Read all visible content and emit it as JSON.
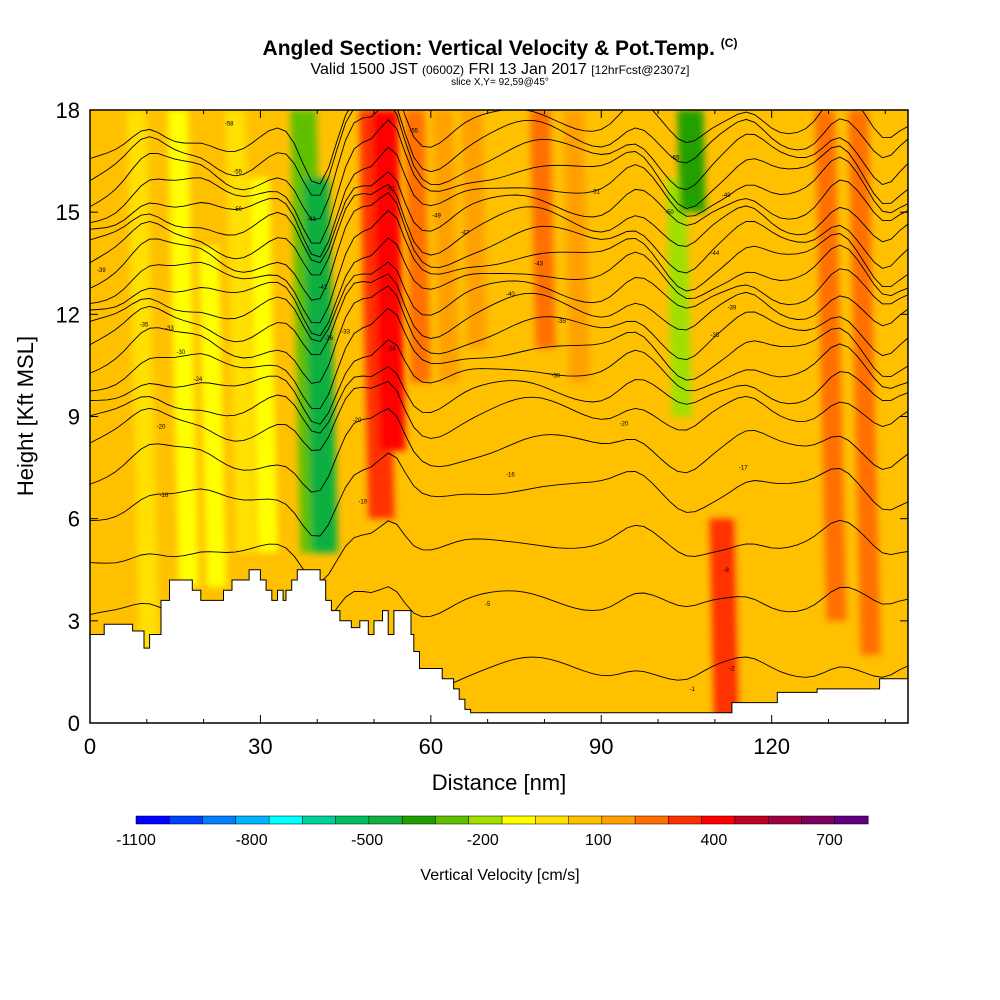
{
  "title": {
    "main": "Angled Section: Vertical Velocity & Pot.Temp.",
    "main_sup": "(C)",
    "valid_a": "Valid 1500 JST",
    "valid_b": "(0600Z)",
    "valid_c": "FRI 13 Jan 2017",
    "valid_d": "[12hrFcst@2307z]",
    "slice": "slice X,Y= 92,59@45°"
  },
  "chart_data": {
    "type": "heatmap",
    "xlabel": "Distance [nm]",
    "ylabel": "Height [Kft MSL]",
    "xlim": [
      0,
      144
    ],
    "ylim": [
      0,
      18
    ],
    "xticks": [
      0,
      30,
      60,
      90,
      120
    ],
    "yticks": [
      0,
      3,
      6,
      9,
      12,
      15,
      18
    ],
    "background_velocity": 50,
    "velocity_features": [
      {
        "x": 10,
        "ybot": 2,
        "ytop": 18,
        "value": -50
      },
      {
        "x": 17,
        "ybot": 4,
        "ytop": 18,
        "value": -150
      },
      {
        "x": 22,
        "ybot": 4,
        "ytop": 14,
        "value": -100
      },
      {
        "x": 27,
        "ybot": 5,
        "ytop": 18,
        "value": -50
      },
      {
        "x": 31,
        "ybot": 5,
        "ytop": 16,
        "value": -100
      },
      {
        "x": 39,
        "ybot": 5,
        "ytop": 18,
        "value": -300
      },
      {
        "x": 41,
        "ybot": 5,
        "ytop": 16,
        "value": -450
      },
      {
        "x": 51,
        "ybot": 6,
        "ytop": 18,
        "value": 300
      },
      {
        "x": 53,
        "ybot": 8,
        "ytop": 18,
        "value": 450
      },
      {
        "x": 58,
        "ybot": 10,
        "ytop": 18,
        "value": 200
      },
      {
        "x": 63,
        "ybot": 10,
        "ytop": 18,
        "value": 150
      },
      {
        "x": 68,
        "ybot": 11,
        "ytop": 18,
        "value": 150
      },
      {
        "x": 74,
        "ybot": 0,
        "ytop": 18,
        "value": 100
      },
      {
        "x": 80,
        "ybot": 11,
        "ytop": 18,
        "value": 200
      },
      {
        "x": 86,
        "ybot": 10,
        "ytop": 18,
        "value": 150
      },
      {
        "x": 93,
        "ybot": 0,
        "ytop": 9,
        "value": 100
      },
      {
        "x": 100,
        "ybot": 0,
        "ytop": 9,
        "value": 100
      },
      {
        "x": 104,
        "ybot": 9,
        "ytop": 16,
        "value": -200
      },
      {
        "x": 106,
        "ybot": 15,
        "ytop": 18,
        "value": -350
      },
      {
        "x": 112,
        "ybot": 0,
        "ytop": 6,
        "value": 300
      },
      {
        "x": 116,
        "ybot": 0,
        "ytop": 12,
        "value": 100
      },
      {
        "x": 124,
        "ybot": 0,
        "ytop": 14,
        "value": 100
      },
      {
        "x": 131,
        "ybot": 3,
        "ytop": 18,
        "value": 200
      },
      {
        "x": 137,
        "ybot": 2,
        "ytop": 18,
        "value": 250
      },
      {
        "x": 141,
        "ybot": 6,
        "ytop": 14,
        "value": 100
      }
    ],
    "theta_contour_heights_kft": [
      1.5,
      3.5,
      5.2,
      6.8,
      8.0,
      9.0,
      9.6,
      10.2,
      10.8,
      11.4,
      12.0,
      12.5,
      13.0,
      13.5,
      14.0,
      14.5,
      15.0,
      15.5,
      16.0,
      16.5,
      17.0,
      17.5
    ],
    "contour_labels": [
      {
        "x": 2,
        "y": 13.3,
        "text": "-39"
      },
      {
        "x": 9.5,
        "y": 11.7,
        "text": "-35"
      },
      {
        "x": 14,
        "y": 11.6,
        "text": "-33"
      },
      {
        "x": 16,
        "y": 10.9,
        "text": "-30"
      },
      {
        "x": 19,
        "y": 10.1,
        "text": "-24"
      },
      {
        "x": 12.5,
        "y": 8.7,
        "text": "-20"
      },
      {
        "x": 13,
        "y": 6.7,
        "text": "-16"
      },
      {
        "x": 26,
        "y": 15.1,
        "text": "-50"
      },
      {
        "x": 26,
        "y": 16.2,
        "text": "-55"
      },
      {
        "x": 24.5,
        "y": 17.6,
        "text": "-58"
      },
      {
        "x": 39,
        "y": 14.8,
        "text": "-48"
      },
      {
        "x": 41,
        "y": 12.8,
        "text": "-42"
      },
      {
        "x": 42,
        "y": 11.3,
        "text": "-36"
      },
      {
        "x": 45,
        "y": 11.5,
        "text": "-33"
      },
      {
        "x": 47,
        "y": 8.9,
        "text": "-20"
      },
      {
        "x": 48,
        "y": 6.5,
        "text": "-10"
      },
      {
        "x": 53,
        "y": 11.0,
        "text": "-34"
      },
      {
        "x": 53,
        "y": 15.7,
        "text": "-51"
      },
      {
        "x": 57,
        "y": 17.4,
        "text": "-55"
      },
      {
        "x": 61,
        "y": 14.9,
        "text": "-49"
      },
      {
        "x": 66,
        "y": 14.4,
        "text": "-47"
      },
      {
        "x": 74,
        "y": 12.6,
        "text": "-40"
      },
      {
        "x": 79,
        "y": 13.5,
        "text": "-43"
      },
      {
        "x": 82,
        "y": 10.2,
        "text": "-30"
      },
      {
        "x": 83,
        "y": 11.8,
        "text": "-35"
      },
      {
        "x": 74,
        "y": 7.3,
        "text": "-16"
      },
      {
        "x": 94,
        "y": 8.8,
        "text": "-20"
      },
      {
        "x": 89,
        "y": 15.6,
        "text": "-51"
      },
      {
        "x": 103,
        "y": 16.6,
        "text": "-55"
      },
      {
        "x": 102,
        "y": 15.0,
        "text": "-50"
      },
      {
        "x": 110,
        "y": 13.8,
        "text": "-44"
      },
      {
        "x": 112,
        "y": 15.5,
        "text": "-49"
      },
      {
        "x": 113,
        "y": 12.2,
        "text": "-39"
      },
      {
        "x": 110,
        "y": 11.4,
        "text": "-35"
      },
      {
        "x": 115,
        "y": 7.5,
        "text": "-17"
      },
      {
        "x": 70,
        "y": 3.5,
        "text": "-5"
      },
      {
        "x": 112,
        "y": 4.5,
        "text": "-8"
      },
      {
        "x": 113,
        "y": 1.6,
        "text": "-2"
      },
      {
        "x": 106,
        "y": 1.0,
        "text": "-1"
      }
    ],
    "terrain_profile": [
      [
        0,
        2.6
      ],
      [
        2.5,
        2.6
      ],
      [
        2.5,
        2.9
      ],
      [
        7.5,
        2.9
      ],
      [
        7.5,
        2.7
      ],
      [
        9.5,
        2.7
      ],
      [
        9.5,
        2.2
      ],
      [
        10.5,
        2.2
      ],
      [
        10.5,
        2.6
      ],
      [
        12.5,
        2.6
      ],
      [
        12.5,
        3.6
      ],
      [
        14,
        3.6
      ],
      [
        14,
        4.2
      ],
      [
        18,
        4.2
      ],
      [
        18,
        3.9
      ],
      [
        19.5,
        3.9
      ],
      [
        19.5,
        3.6
      ],
      [
        23.5,
        3.6
      ],
      [
        23.5,
        3.9
      ],
      [
        25,
        3.9
      ],
      [
        25,
        4.2
      ],
      [
        28,
        4.2
      ],
      [
        28,
        4.5
      ],
      [
        30,
        4.5
      ],
      [
        30,
        4.2
      ],
      [
        31,
        4.2
      ],
      [
        31,
        3.9
      ],
      [
        32,
        3.9
      ],
      [
        32,
        3.6
      ],
      [
        33,
        3.6
      ],
      [
        33,
        3.9
      ],
      [
        34,
        3.9
      ],
      [
        34,
        3.6
      ],
      [
        34.5,
        3.6
      ],
      [
        34.5,
        3.9
      ],
      [
        35.5,
        3.9
      ],
      [
        35.5,
        4.2
      ],
      [
        36.5,
        4.2
      ],
      [
        36.5,
        4.5
      ],
      [
        40.5,
        4.5
      ],
      [
        40.5,
        4.2
      ],
      [
        41.5,
        4.2
      ],
      [
        41.5,
        3.6
      ],
      [
        42.5,
        3.6
      ],
      [
        42.5,
        3.3
      ],
      [
        44,
        3.3
      ],
      [
        44,
        3.0
      ],
      [
        46,
        3.0
      ],
      [
        46,
        2.8
      ],
      [
        47.5,
        2.8
      ],
      [
        47.5,
        3.0
      ],
      [
        49,
        3.0
      ],
      [
        49,
        2.6
      ],
      [
        50,
        2.6
      ],
      [
        50,
        3.0
      ],
      [
        51.5,
        3.0
      ],
      [
        51.5,
        3.3
      ],
      [
        52.5,
        3.3
      ],
      [
        52.5,
        2.6
      ],
      [
        53.5,
        2.6
      ],
      [
        53.5,
        3.3
      ],
      [
        56.5,
        3.3
      ],
      [
        56.5,
        2.6
      ],
      [
        57,
        2.6
      ],
      [
        57,
        2.1
      ],
      [
        58,
        2.1
      ],
      [
        58,
        1.6
      ],
      [
        62,
        1.6
      ],
      [
        62,
        1.3
      ],
      [
        64,
        1.3
      ],
      [
        64,
        1.0
      ],
      [
        65,
        1.0
      ],
      [
        65,
        0.7
      ],
      [
        66,
        0.7
      ],
      [
        66,
        0.4
      ],
      [
        67,
        0.4
      ],
      [
        67,
        0.3
      ],
      [
        113,
        0.3
      ],
      [
        113,
        0.6
      ],
      [
        121,
        0.6
      ],
      [
        121,
        0.9
      ],
      [
        128,
        0.9
      ],
      [
        128,
        1.0
      ],
      [
        139,
        1.0
      ],
      [
        139,
        1.3
      ],
      [
        144,
        1.3
      ]
    ],
    "colorbar": {
      "label": "Vertical Velocity [cm/s]",
      "bounds": [
        -1100,
        800
      ],
      "colors": [
        "#0000ff",
        "#0040ff",
        "#0080ff",
        "#00b4ff",
        "#00ffff",
        "#00d09a",
        "#00c060",
        "#10b040",
        "#20a000",
        "#60c000",
        "#a0e000",
        "#ffff00",
        "#ffe000",
        "#ffc000",
        "#ffa000",
        "#ff7000",
        "#ff3000",
        "#ff0000",
        "#c00020",
        "#a00040",
        "#800060",
        "#600080"
      ],
      "tick_values": [
        -1100,
        -800,
        -500,
        -200,
        100,
        400,
        700
      ],
      "tick_labels": [
        "-1100",
        "-800",
        "-500",
        "-200",
        "100",
        "400",
        "700"
      ]
    }
  }
}
